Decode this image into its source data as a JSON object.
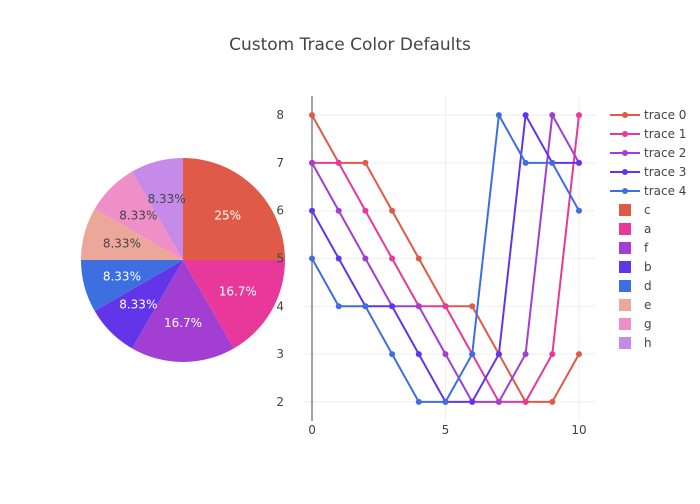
{
  "title": "Custom Trace Color Defaults",
  "chart_data": [
    {
      "type": "pie",
      "labels": [
        "c",
        "a",
        "f",
        "b",
        "d",
        "e",
        "g",
        "h"
      ],
      "values": [
        3,
        2,
        2,
        1,
        1,
        1,
        1,
        1
      ],
      "percent_labels": [
        "25%",
        "16.7%",
        "16.7%",
        "8.33%",
        "8.33%",
        "8.33%",
        "8.33%",
        "8.33%"
      ],
      "colors": [
        "#E05A48",
        "#E8399A",
        "#A23FD2",
        "#6236E8",
        "#3E6FE0",
        "#EBA89A",
        "#EE8FC8",
        "#C68AE8"
      ],
      "label_text_colors": [
        "#ffffff",
        "#ffffff",
        "#ffffff",
        "#ffffff",
        "#ffffff",
        "#444444",
        "#444444",
        "#444444"
      ],
      "sort": "descending",
      "direction": "clockwise",
      "start": "top"
    },
    {
      "type": "line",
      "x": [
        0,
        1,
        2,
        3,
        4,
        5,
        6,
        7,
        8,
        9,
        10
      ],
      "series": [
        {
          "name": "trace 0",
          "color": "#E05A48",
          "values": [
            8,
            7,
            7,
            6,
            5,
            4,
            4,
            3,
            2,
            2,
            3
          ]
        },
        {
          "name": "trace 1",
          "color": "#E8399A",
          "values": [
            7,
            7,
            6,
            5,
            4,
            4,
            3,
            2,
            2,
            3,
            8
          ]
        },
        {
          "name": "trace 2",
          "color": "#A23FD2",
          "values": [
            7,
            6,
            5,
            4,
            4,
            3,
            2,
            2,
            3,
            8,
            7
          ]
        },
        {
          "name": "trace 3",
          "color": "#6236E8",
          "values": [
            6,
            5,
            4,
            4,
            3,
            2,
            2,
            3,
            8,
            7,
            7
          ]
        },
        {
          "name": "trace 4",
          "color": "#3E6FE0",
          "values": [
            5,
            4,
            4,
            3,
            2,
            2,
            3,
            8,
            7,
            7,
            6
          ]
        }
      ],
      "xlim": [
        -0.3,
        10.6
      ],
      "ylim": [
        1.6,
        8.4
      ],
      "xticks": [
        0,
        5,
        10
      ],
      "yticks": [
        2,
        3,
        4,
        5,
        6,
        7,
        8
      ],
      "grid": true,
      "legend": "right"
    }
  ]
}
